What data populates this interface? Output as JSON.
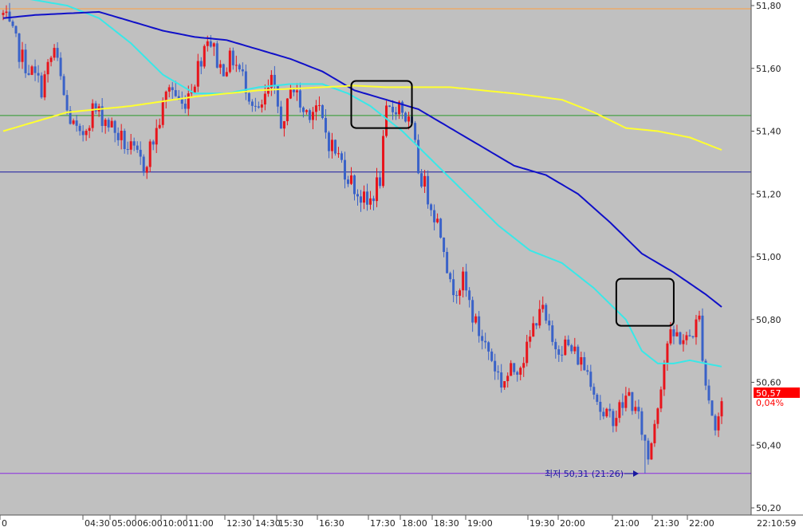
{
  "colors": {
    "background": "#c0c0c0",
    "axis_panel": "#ffffff",
    "candle_up": "#e8141b",
    "candle_down": "#3a62c8",
    "ma_short": "#38e8e8",
    "ma_mid": "#1010c8",
    "ma_long": "#ffff30",
    "line_orange": "#ff9f40",
    "line_green": "#2a9a2a",
    "line_navy": "#1818a0",
    "line_purple": "#8a2ae0",
    "price_box": "#ff0000",
    "highlight_box": "#000000"
  },
  "chart_data": {
    "type": "candlestick",
    "y_axis": {
      "ticks": [
        "51,80",
        "51,60",
        "51,40",
        "51,20",
        "51,00",
        "50,80",
        "50,60",
        "50,40",
        "50,20"
      ],
      "tick_values": [
        51.8,
        51.6,
        51.4,
        51.2,
        51.0,
        50.8,
        50.6,
        50.4,
        50.2
      ],
      "range": [
        50.16,
        51.82
      ]
    },
    "x_axis": {
      "labels": [
        "0",
        "04:30",
        "05:00",
        "06:00",
        "10:00",
        "11:00",
        "12:30",
        "14:30",
        "15:30",
        "16:30",
        "17:30",
        "18:00",
        "18:30",
        "19:00",
        "19:30",
        "20:00",
        "21:00",
        "21:30",
        "22:00"
      ],
      "label_positions": [
        0,
        104,
        138,
        170,
        202,
        234,
        282,
        318,
        347,
        398,
        462,
        502,
        542,
        584,
        662,
        700,
        768,
        818,
        862
      ],
      "current_time": "22:10:59"
    },
    "horizontal_lines": [
      {
        "key": "orange",
        "value": 51.79
      },
      {
        "key": "green",
        "value": 51.45
      },
      {
        "key": "navy",
        "value": 51.27
      },
      {
        "key": "purple",
        "value": 50.31
      }
    ],
    "current_price": {
      "value": 50.57,
      "label": "50,57",
      "change": "0,04%"
    },
    "low_annotation": {
      "text": "최저 50,31 (21:26)",
      "value": 50.31,
      "index": 201
    },
    "candle_count": 226,
    "moving_averages": [
      {
        "key": "ma_short",
        "anchors": [
          [
            0,
            51.835
          ],
          [
            20,
            51.8
          ],
          [
            30,
            51.76
          ],
          [
            40,
            51.68
          ],
          [
            50,
            51.58
          ],
          [
            60,
            51.52
          ],
          [
            70,
            51.52
          ],
          [
            80,
            51.54
          ],
          [
            90,
            51.55
          ],
          [
            100,
            51.55
          ],
          [
            108,
            51.52
          ],
          [
            115,
            51.48
          ],
          [
            125,
            51.4
          ],
          [
            135,
            51.3
          ],
          [
            145,
            51.2
          ],
          [
            155,
            51.1
          ],
          [
            165,
            51.02
          ],
          [
            175,
            50.98
          ],
          [
            185,
            50.9
          ],
          [
            195,
            50.8
          ],
          [
            200,
            50.7
          ],
          [
            205,
            50.66
          ],
          [
            210,
            50.66
          ],
          [
            215,
            50.67
          ],
          [
            220,
            50.66
          ],
          [
            225,
            50.65
          ]
        ]
      },
      {
        "key": "ma_mid",
        "anchors": [
          [
            0,
            51.76
          ],
          [
            10,
            51.77
          ],
          [
            20,
            51.775
          ],
          [
            30,
            51.78
          ],
          [
            40,
            51.75
          ],
          [
            50,
            51.72
          ],
          [
            60,
            51.7
          ],
          [
            70,
            51.69
          ],
          [
            80,
            51.66
          ],
          [
            90,
            51.63
          ],
          [
            100,
            51.59
          ],
          [
            110,
            51.53
          ],
          [
            120,
            51.5
          ],
          [
            130,
            51.47
          ],
          [
            140,
            51.41
          ],
          [
            150,
            51.35
          ],
          [
            160,
            51.29
          ],
          [
            170,
            51.26
          ],
          [
            180,
            51.2
          ],
          [
            190,
            51.11
          ],
          [
            200,
            51.01
          ],
          [
            210,
            50.95
          ],
          [
            220,
            50.88
          ],
          [
            225,
            50.84
          ]
        ]
      },
      {
        "key": "ma_long",
        "anchors": [
          [
            0,
            51.4
          ],
          [
            20,
            51.46
          ],
          [
            40,
            51.48
          ],
          [
            60,
            51.51
          ],
          [
            80,
            51.53
          ],
          [
            100,
            51.54
          ],
          [
            110,
            51.545
          ],
          [
            120,
            51.54
          ],
          [
            140,
            51.54
          ],
          [
            160,
            51.52
          ],
          [
            175,
            51.5
          ],
          [
            185,
            51.46
          ],
          [
            195,
            51.41
          ],
          [
            205,
            51.4
          ],
          [
            215,
            51.38
          ],
          [
            225,
            51.34
          ]
        ]
      }
    ],
    "price_anchors": [
      [
        0,
        51.77
      ],
      [
        6,
        51.63
      ],
      [
        12,
        51.54
      ],
      [
        16,
        51.66
      ],
      [
        20,
        51.46
      ],
      [
        24,
        51.37
      ],
      [
        28,
        51.47
      ],
      [
        32,
        51.44
      ],
      [
        38,
        51.36
      ],
      [
        44,
        51.29
      ],
      [
        48,
        51.4
      ],
      [
        52,
        51.55
      ],
      [
        56,
        51.48
      ],
      [
        60,
        51.57
      ],
      [
        64,
        51.71
      ],
      [
        68,
        51.6
      ],
      [
        72,
        51.63
      ],
      [
        76,
        51.55
      ],
      [
        80,
        51.45
      ],
      [
        84,
        51.55
      ],
      [
        88,
        51.4
      ],
      [
        90,
        51.56
      ],
      [
        94,
        51.46
      ],
      [
        98,
        51.48
      ],
      [
        102,
        51.37
      ],
      [
        106,
        51.3
      ],
      [
        110,
        51.22
      ],
      [
        114,
        51.16
      ],
      [
        118,
        51.25
      ],
      [
        120,
        51.45
      ],
      [
        124,
        51.49
      ],
      [
        128,
        51.4
      ],
      [
        130,
        51.28
      ],
      [
        134,
        51.17
      ],
      [
        138,
        51.05
      ],
      [
        140,
        50.9
      ],
      [
        144,
        50.92
      ],
      [
        148,
        50.78
      ],
      [
        152,
        50.7
      ],
      [
        156,
        50.6
      ],
      [
        160,
        50.64
      ],
      [
        164,
        50.7
      ],
      [
        168,
        50.85
      ],
      [
        172,
        50.72
      ],
      [
        176,
        50.72
      ],
      [
        180,
        50.68
      ],
      [
        184,
        50.62
      ],
      [
        188,
        50.48
      ],
      [
        192,
        50.5
      ],
      [
        196,
        50.56
      ],
      [
        200,
        50.45
      ],
      [
        202,
        50.36
      ],
      [
        205,
        50.54
      ],
      [
        208,
        50.73
      ],
      [
        211,
        50.75
      ],
      [
        214,
        50.73
      ],
      [
        218,
        50.8
      ],
      [
        220,
        50.6
      ],
      [
        223,
        50.45
      ],
      [
        226,
        50.57
      ]
    ]
  },
  "highlights": [
    {
      "label": "box-1",
      "start_index": 109,
      "end_index": 128,
      "top_value": 51.56,
      "bottom_value": 51.41
    },
    {
      "label": "box-2",
      "start_index": 192,
      "end_index": 210,
      "top_value": 50.93,
      "bottom_value": 50.78
    }
  ]
}
